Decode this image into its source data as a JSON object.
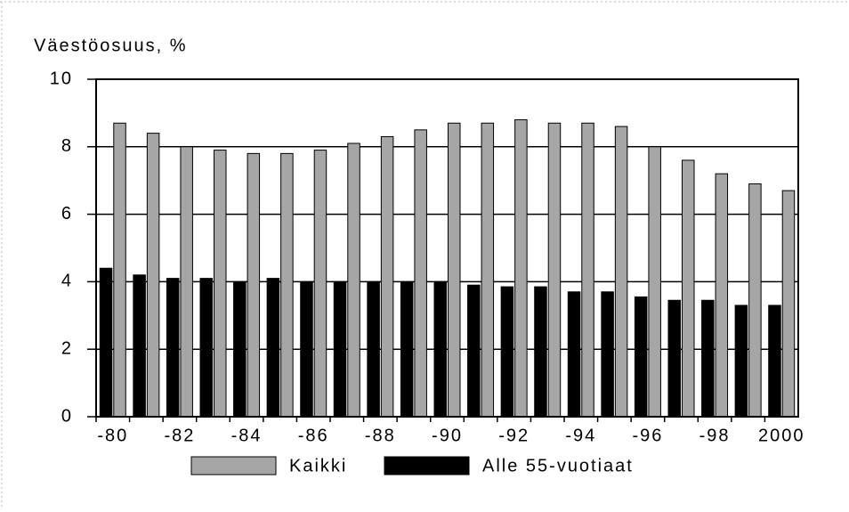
{
  "chart_data": {
    "type": "bar",
    "y_label": "Väestöosuus, %",
    "categories": [
      "-80",
      null,
      "-82",
      null,
      "-84",
      null,
      "-86",
      null,
      "-88",
      null,
      "-90",
      null,
      "-92",
      null,
      "-94",
      null,
      "-96",
      null,
      "-98",
      null,
      "2000"
    ],
    "series": [
      {
        "name": "Kaikki",
        "color": "#a6a6a6",
        "values": [
          8.7,
          8.4,
          8.0,
          7.9,
          7.8,
          7.8,
          7.9,
          8.1,
          8.3,
          8.5,
          8.7,
          8.7,
          8.8,
          8.7,
          8.7,
          8.6,
          8.0,
          7.6,
          7.2,
          6.9,
          6.7
        ]
      },
      {
        "name": "Alle 55-vuotiaat",
        "color": "#000000",
        "values": [
          4.4,
          4.2,
          4.1,
          4.1,
          4.0,
          4.1,
          4.0,
          4.0,
          4.0,
          4.0,
          4.0,
          3.9,
          3.85,
          3.85,
          3.7,
          3.7,
          3.55,
          3.45,
          3.45,
          3.3,
          3.3
        ]
      }
    ],
    "ylim": [
      0,
      10
    ],
    "yticks": [
      0,
      2,
      4,
      6,
      8,
      10
    ],
    "grid": true
  }
}
